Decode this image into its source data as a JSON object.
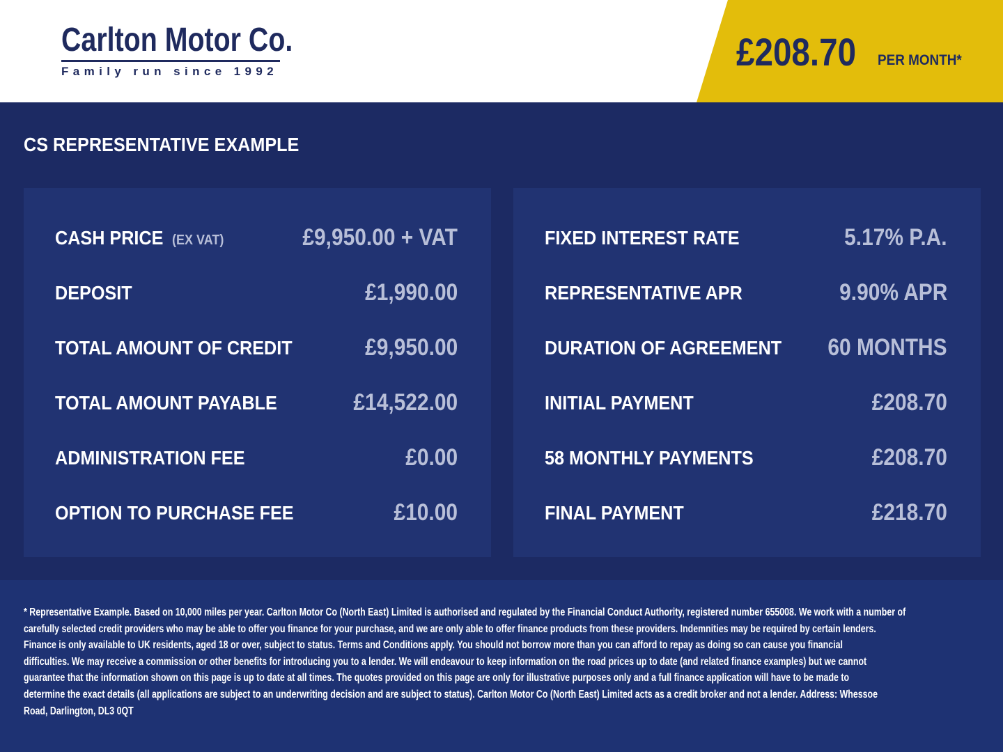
{
  "header": {
    "logo_name": "Carlton Motor Co.",
    "logo_tagline": "Family run since 1992",
    "price": "£208.70",
    "per_month": "PER MONTH*",
    "accent": "#e3bd0b"
  },
  "section_title": "CS REPRESENTATIVE EXAMPLE",
  "left": [
    {
      "label": "CASH PRICE",
      "sub": "(EX VAT)",
      "value": "£9,950.00 + VAT"
    },
    {
      "label": "DEPOSIT",
      "value": "£1,990.00"
    },
    {
      "label": "TOTAL AMOUNT OF CREDIT",
      "value": "£9,950.00"
    },
    {
      "label": "TOTAL AMOUNT PAYABLE",
      "value": "£14,522.00"
    },
    {
      "label": "ADMINISTRATION FEE",
      "value": "£0.00"
    },
    {
      "label": "OPTION TO PURCHASE FEE",
      "value": "£10.00"
    }
  ],
  "right": [
    {
      "label": "FIXED INTEREST RATE",
      "value": "5.17% P.A."
    },
    {
      "label": "REPRESENTATIVE APR",
      "value": "9.90% APR"
    },
    {
      "label": "DURATION OF AGREEMENT",
      "value": "60 MONTHS"
    },
    {
      "label": "INITIAL PAYMENT",
      "value": "£208.70"
    },
    {
      "label": "58 MONTHLY PAYMENTS",
      "value": "£208.70"
    },
    {
      "label": "FINAL PAYMENT",
      "value": "£218.70"
    }
  ],
  "footer": {
    "lines": [
      "* Representative Example. Based on 10,000 miles per year. Carlton Motor Co (North East) Limited is authorised and regulated by the Financial Conduct Authority, registered number 655008. We work with a number of",
      "carefully selected credit providers who may be able to offer you finance for your purchase, and we are only able to offer finance products from these providers. Indemnities may be required by certain lenders.",
      "Finance is only available to UK residents, aged 18 or over, subject to status. Terms and Conditions apply. You should not borrow more than you can afford to repay as doing so can cause you financial",
      "difficulties. We may receive a commission or other benefits for introducing you to a lender. We will endeavour to keep information on the road prices up to date (and related finance examples) but we cannot",
      "guarantee that the information shown on this page is up to date at all times. The quotes provided on this page are only for illustrative purposes only and a full finance application will have to be made to",
      "determine the exact details (all applications are subject to an underwriting decision and are subject to status). Carlton Motor Co (North East) Limited acts as a credit broker and not a lender. Address: Whessoe",
      "Road, Darlington, DL3 0QT"
    ]
  }
}
